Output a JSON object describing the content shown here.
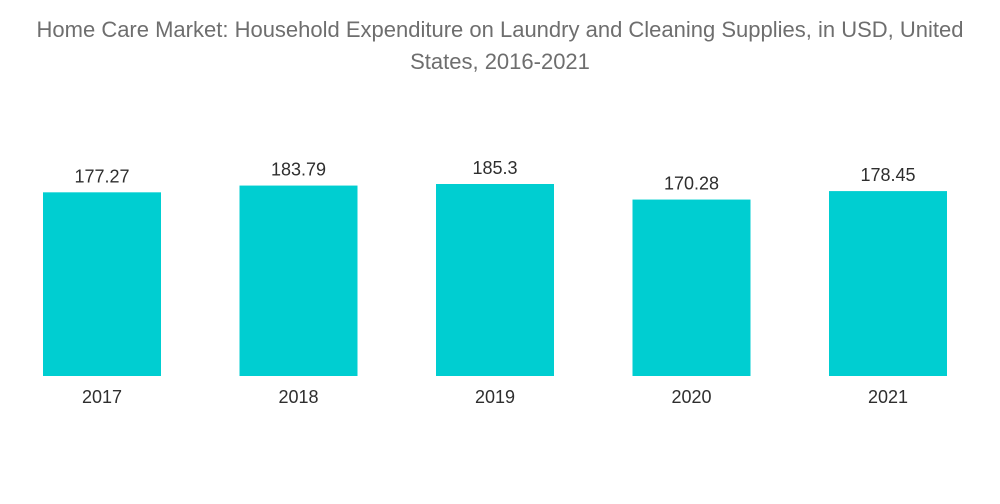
{
  "chart_data": {
    "type": "bar",
    "title": "Home Care Market: Household Expenditure on Laundry and Cleaning Supplies, in USD, United States, 2016-2021",
    "categories": [
      "2017",
      "2018",
      "2019",
      "2020",
      "2021"
    ],
    "values": [
      177.27,
      183.79,
      185.3,
      170.28,
      178.45
    ],
    "value_labels": [
      "177.27",
      "183.79",
      "185.3",
      "170.28",
      "178.45"
    ],
    "xlabel": "",
    "ylabel": "",
    "ylim": [
      0,
      185.3
    ],
    "grid": false,
    "legend": "none",
    "bar_color": "#00CED1"
  }
}
